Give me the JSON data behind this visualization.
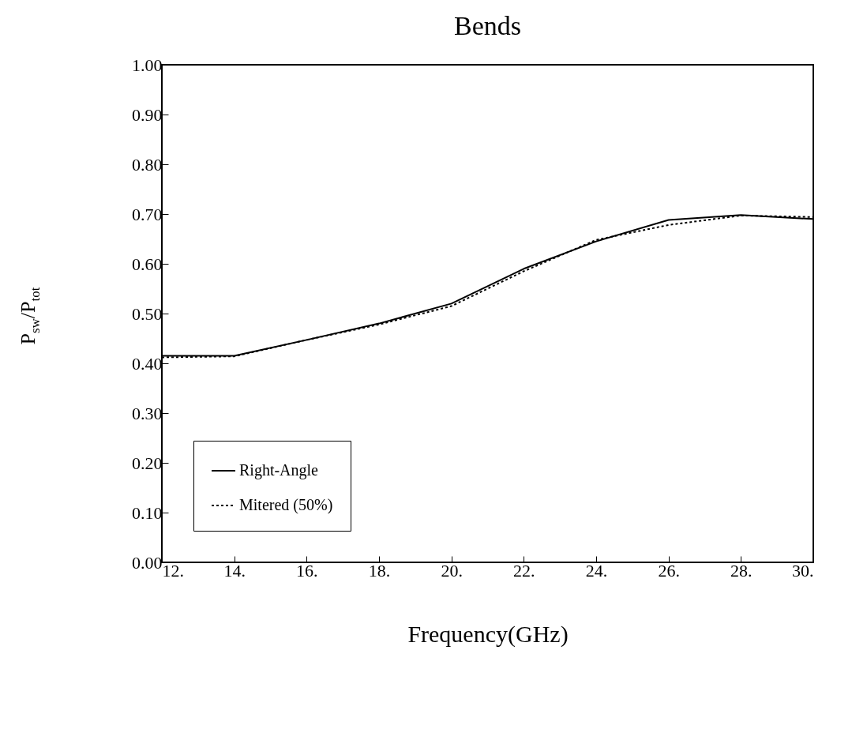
{
  "chart_data": {
    "type": "line",
    "title": "Bends",
    "xlabel": "Frequency(GHz)",
    "ylabel": "P$_{sw}$/P$_{tot}$",
    "x": [
      12,
      14,
      16,
      18,
      20,
      22,
      24,
      26,
      28,
      30
    ],
    "series": [
      {
        "name": "Right-Angle",
        "color": "#000000",
        "line_style": "solid",
        "values": [
          0.415,
          0.415,
          0.447,
          0.48,
          0.52,
          0.59,
          0.645,
          0.688,
          0.698,
          0.69
        ]
      },
      {
        "name": "Mitered (50%)",
        "color": "#000000",
        "line_style": "dotted",
        "values": [
          0.412,
          0.414,
          0.447,
          0.478,
          0.515,
          0.585,
          0.648,
          0.678,
          0.697,
          0.694
        ]
      }
    ],
    "xlim": [
      12,
      30
    ],
    "xticks": [
      {
        "value": 12,
        "label": "12."
      },
      {
        "value": 14,
        "label": "14."
      },
      {
        "value": 16,
        "label": "16."
      },
      {
        "value": 18,
        "label": "18."
      },
      {
        "value": 20,
        "label": "20."
      },
      {
        "value": 22,
        "label": "22."
      },
      {
        "value": 24,
        "label": "24."
      },
      {
        "value": 26,
        "label": "26."
      },
      {
        "value": 28,
        "label": "28."
      },
      {
        "value": 30,
        "label": "30."
      }
    ],
    "ylim": [
      0,
      1
    ],
    "yticks": [
      {
        "value": 0,
        "label": "0.00"
      },
      {
        "value": 0.1,
        "label": "0.10"
      },
      {
        "value": 0.2,
        "label": "0.20"
      },
      {
        "value": 0.3,
        "label": "0.30"
      },
      {
        "value": 0.4,
        "label": "0.40"
      },
      {
        "value": 0.5,
        "label": "0.50"
      },
      {
        "value": 0.6,
        "label": "0.60"
      },
      {
        "value": 0.7,
        "label": "0.70"
      },
      {
        "value": 0.8,
        "label": "0.80"
      },
      {
        "value": 0.9,
        "label": "0.90"
      },
      {
        "value": 1,
        "label": "1.00"
      }
    ],
    "grid": false,
    "legend": "bottom left",
    "marker": "none"
  }
}
